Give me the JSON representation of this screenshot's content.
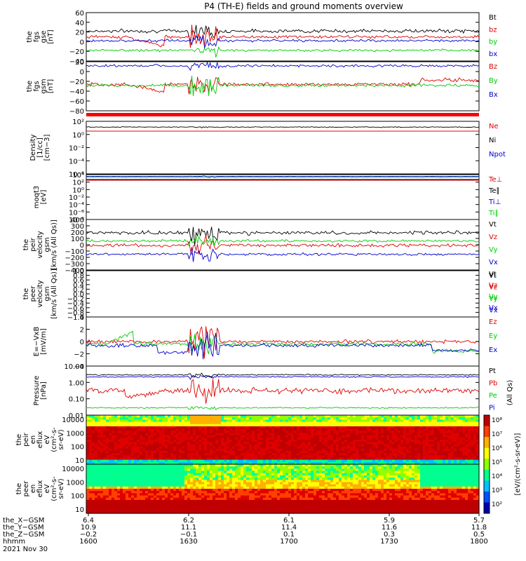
{
  "title": "P4 (TH-E) fields and ground moments overview",
  "colors": {
    "black": "#000000",
    "red": "#e00000",
    "green": "#00cc00",
    "blue": "#0000cc",
    "bright_red": "#ff0000",
    "bright_green": "#00ff00"
  },
  "chart_data": [
    {
      "type": "line",
      "ylabel": [
        "the",
        "fgs",
        "gse",
        "[nT]"
      ],
      "yticks": [
        "60",
        "40",
        "20",
        "0",
        "−20",
        "−40"
      ],
      "ylim": [
        -40,
        60
      ],
      "series": [
        {
          "name": "Bt",
          "color": "#000000"
        },
        {
          "name": "bz",
          "color": "#e00000"
        },
        {
          "name": "by",
          "color": "#00cc00"
        },
        {
          "name": "bx",
          "color": "#0000cc"
        }
      ],
      "baselines": [
        22,
        10,
        -18,
        2
      ]
    },
    {
      "type": "line",
      "ylabel": [
        "the",
        "fgs",
        "gsm",
        "[nT]"
      ],
      "yticks": [
        "20",
        "0",
        "−20",
        "−40",
        "−60",
        "−80"
      ],
      "ylim": [
        -90,
        30
      ],
      "series": [
        {
          "name": "Bz",
          "color": "#e00000"
        },
        {
          "name": "By",
          "color": "#00cc00"
        },
        {
          "name": "Bx",
          "color": "#0000cc"
        }
      ],
      "baselines": [
        -25,
        -28,
        20
      ]
    },
    {
      "type": "line",
      "ylabel": [
        "Density",
        "[1/cc]",
        "[cm−3]"
      ],
      "yticks": [
        "10²",
        "10⁰",
        "10⁻²",
        "10⁻⁴",
        "10⁻⁶"
      ],
      "log": true,
      "series": [
        {
          "name": "Ne",
          "color": "#e00000"
        },
        {
          "name": "Ni",
          "color": "#000000"
        },
        {
          "name": "Npot",
          "color": "#0000cc"
        }
      ]
    },
    {
      "type": "line",
      "ylabel": [
        "moqt3",
        "[eV]"
      ],
      "yticks": [
        "10⁴",
        "10²",
        "10⁰",
        "10⁻²",
        "10⁻⁴",
        "10⁻⁶",
        "10⁻⁸"
      ],
      "log": true,
      "series": [
        {
          "name": "Te⊥",
          "color": "#e00000"
        },
        {
          "name": "Te∥",
          "color": "#000000"
        },
        {
          "name": "Ti⊥",
          "color": "#0000cc"
        },
        {
          "name": "Ti∥",
          "color": "#00cc00"
        }
      ]
    },
    {
      "type": "line",
      "ylabel": [
        "the",
        "peir",
        "velocity",
        "gsm",
        "[km/s (All Qs)]"
      ],
      "yticks": [
        "400",
        "300",
        "200",
        "100",
        "0",
        "−100",
        "−200",
        "−300",
        "−400"
      ],
      "ylim": [
        -400,
        400
      ],
      "series": [
        {
          "name": "Vt",
          "color": "#000000"
        },
        {
          "name": "Vz",
          "color": "#e00000"
        },
        {
          "name": "Vy",
          "color": "#00cc00"
        },
        {
          "name": "Vx",
          "color": "#0000cc"
        }
      ],
      "baselines": [
        190,
        -10,
        60,
        -150
      ]
    },
    {
      "type": "line",
      "ylabel": [
        "the",
        "peer",
        "velocity",
        "gsm",
        "[km/s (All Qs)]"
      ],
      "yticks": [
        "1.0",
        "0.8",
        "0.6",
        "0.4",
        "0.2",
        "0.0",
        "−0.2",
        "−0.4",
        "−0.6",
        "−0.8",
        "−1.0"
      ],
      "ylim": [
        -1,
        1
      ],
      "series": [
        {
          "name": "Vt",
          "color": "#000000"
        },
        {
          "name": "Vz",
          "color": "#e00000"
        },
        {
          "name": "Vy",
          "color": "#00cc00"
        },
        {
          "name": "Vx",
          "color": "#0000cc"
        }
      ]
    },
    {
      "type": "line",
      "ylabel": [
        "E=−VxB",
        "[mV/m]"
      ],
      "yticks": [
        "4",
        "2",
        "0",
        "−2",
        "−4"
      ],
      "ylim": [
        -5,
        5
      ],
      "series": [
        {
          "name": "Ez",
          "color": "#e00000"
        },
        {
          "name": "Ey",
          "color": "#00cc00"
        },
        {
          "name": "Ex",
          "color": "#0000cc"
        }
      ]
    },
    {
      "type": "line",
      "ylabel": [
        "Pressure",
        "[nPa]"
      ],
      "yticks": [
        "10.00",
        "1.00",
        "0.10",
        "0.01"
      ],
      "log": true,
      "series": [
        {
          "name": "Pt",
          "color": "#000000"
        },
        {
          "name": "Pb",
          "color": "#e00000"
        },
        {
          "name": "Pe",
          "color": "#00cc00"
        },
        {
          "name": "Pi",
          "color": "#0000cc"
        }
      ],
      "side_label": "(All Qs)"
    },
    {
      "type": "heatmap",
      "ylabel": [
        "the",
        "peir",
        "en",
        "eflux",
        "eV",
        "(cm²-s-",
        "sr-eV)"
      ],
      "yticks": [
        "10000",
        "1000",
        "100",
        "10"
      ]
    },
    {
      "type": "heatmap",
      "ylabel": [
        "the",
        "peer",
        "en",
        "eflux",
        "eV",
        "(cm²-s-",
        "sr-eV)"
      ],
      "yticks": [
        "10000",
        "1000",
        "100",
        "10"
      ]
    }
  ],
  "colorbar": {
    "ticks": [
      "10⁸",
      "10⁷",
      "10⁶",
      "10⁵",
      "10⁴",
      "10³",
      "10²"
    ],
    "label": "[eV/(cm²-s-sr-eV)]"
  },
  "x_axis": {
    "rows": [
      {
        "name": "the_X−GSM",
        "values": [
          "6.4",
          "6.2",
          "6.1",
          "5.9",
          "5.7"
        ]
      },
      {
        "name": "the_Y−GSM",
        "values": [
          "10.9",
          "11.1",
          "11.4",
          "11.6",
          "11.8"
        ]
      },
      {
        "name": "the_Z−GSM",
        "values": [
          "−0.2",
          "−0.1",
          "0.1",
          "0.3",
          "0.5"
        ]
      },
      {
        "name": "hhmm",
        "values": [
          "1600",
          "1630",
          "1700",
          "1730",
          "1800"
        ]
      }
    ],
    "date": "2021 Nov 30"
  }
}
